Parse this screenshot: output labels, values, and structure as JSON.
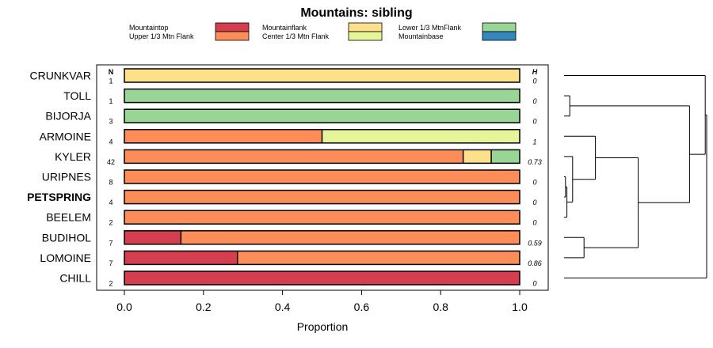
{
  "chart_data": {
    "type": "bar",
    "orientation": "horizontal",
    "stacked": true,
    "title": "Mountains: sibling",
    "xlabel": "Proportion",
    "xlim": [
      0,
      1
    ],
    "x_ticks": [
      0.0,
      0.2,
      0.4,
      0.6,
      0.8,
      1.0
    ],
    "x_tick_labels": [
      "0.0",
      "0.2",
      "0.4",
      "0.6",
      "0.8",
      "1.0"
    ],
    "n_header": "N",
    "h_header": "H",
    "legend": [
      {
        "label": "Mountaintop",
        "color": "#d53e4f"
      },
      {
        "label": "Upper 1/3 Mtn Flank",
        "color": "#fc8d59"
      },
      {
        "label": "Mountainflank",
        "color": "#fee08b"
      },
      {
        "label": "Center 1/3 Mtn Flank",
        "color": "#e6f598"
      },
      {
        "label": "Lower 1/3 MtnFlank",
        "color": "#99d594"
      },
      {
        "label": "Mountainbase",
        "color": "#3288bd"
      }
    ],
    "rows": [
      {
        "label": "CRUNKVAR",
        "bold": false,
        "n": "1",
        "h": "0",
        "segments": [
          {
            "series": "Mountainflank",
            "value": 1.0
          }
        ]
      },
      {
        "label": "TOLL",
        "bold": false,
        "n": "1",
        "h": "0",
        "segments": [
          {
            "series": "Lower 1/3 MtnFlank",
            "value": 1.0
          }
        ]
      },
      {
        "label": "BIJORJA",
        "bold": false,
        "n": "3",
        "h": "0",
        "segments": [
          {
            "series": "Lower 1/3 MtnFlank",
            "value": 1.0
          }
        ]
      },
      {
        "label": "ARMOINE",
        "bold": false,
        "n": "4",
        "h": "1",
        "segments": [
          {
            "series": "Upper 1/3 Mtn Flank",
            "value": 0.5
          },
          {
            "series": "Center 1/3 Mtn Flank",
            "value": 0.5
          }
        ]
      },
      {
        "label": "KYLER",
        "bold": false,
        "n": "42",
        "h": "0.73",
        "segments": [
          {
            "series": "Upper 1/3 Mtn Flank",
            "value": 0.857
          },
          {
            "series": "Mountainflank",
            "value": 0.071
          },
          {
            "series": "Lower 1/3 MtnFlank",
            "value": 0.072
          }
        ]
      },
      {
        "label": "URIPNES",
        "bold": false,
        "n": "8",
        "h": "0",
        "segments": [
          {
            "series": "Upper 1/3 Mtn Flank",
            "value": 1.0
          }
        ]
      },
      {
        "label": "PETSPRING",
        "bold": true,
        "n": "4",
        "h": "0",
        "segments": [
          {
            "series": "Upper 1/3 Mtn Flank",
            "value": 1.0
          }
        ]
      },
      {
        "label": "BEELEM",
        "bold": false,
        "n": "2",
        "h": "0",
        "segments": [
          {
            "series": "Upper 1/3 Mtn Flank",
            "value": 1.0
          }
        ]
      },
      {
        "label": "BUDIHOL",
        "bold": false,
        "n": "7",
        "h": "0.59",
        "segments": [
          {
            "series": "Mountaintop",
            "value": 0.143
          },
          {
            "series": "Upper 1/3 Mtn Flank",
            "value": 0.857
          }
        ]
      },
      {
        "label": "LOMOINE",
        "bold": false,
        "n": "7",
        "h": "0.86",
        "segments": [
          {
            "series": "Mountaintop",
            "value": 0.286
          },
          {
            "series": "Upper 1/3 Mtn Flank",
            "value": 0.714
          }
        ]
      },
      {
        "label": "CHILL",
        "bold": false,
        "n": "2",
        "h": "0",
        "segments": [
          {
            "series": "Mountaintop",
            "value": 1.0
          }
        ]
      }
    ],
    "dendrogram": {
      "description": "hierarchical clustering of the rows shown to the right of the bars",
      "merges": [
        {
          "children": [
            "TOLL",
            "BIJORJA"
          ],
          "height": 0.04
        },
        {
          "children": [
            "URIPNES",
            "PETSPRING"
          ],
          "height": 0.01
        },
        {
          "children": [
            "m2",
            "BEELEM"
          ],
          "height": 0.02
        },
        {
          "children": [
            "KYLER",
            "m3"
          ],
          "height": 0.06
        },
        {
          "children": [
            "ARMOINE",
            "m4"
          ],
          "height": 0.22
        },
        {
          "children": [
            "BUDIHOL",
            "LOMOINE"
          ],
          "height": 0.14
        },
        {
          "children": [
            "m5",
            "m6"
          ],
          "height": 0.52
        },
        {
          "children": [
            "m1",
            "m7"
          ],
          "height": 0.88
        },
        {
          "children": [
            "CRUNKVAR",
            "m8"
          ],
          "height": 0.99
        },
        {
          "children": [
            "m9",
            "CHILL"
          ],
          "height": 1.0
        }
      ]
    }
  }
}
